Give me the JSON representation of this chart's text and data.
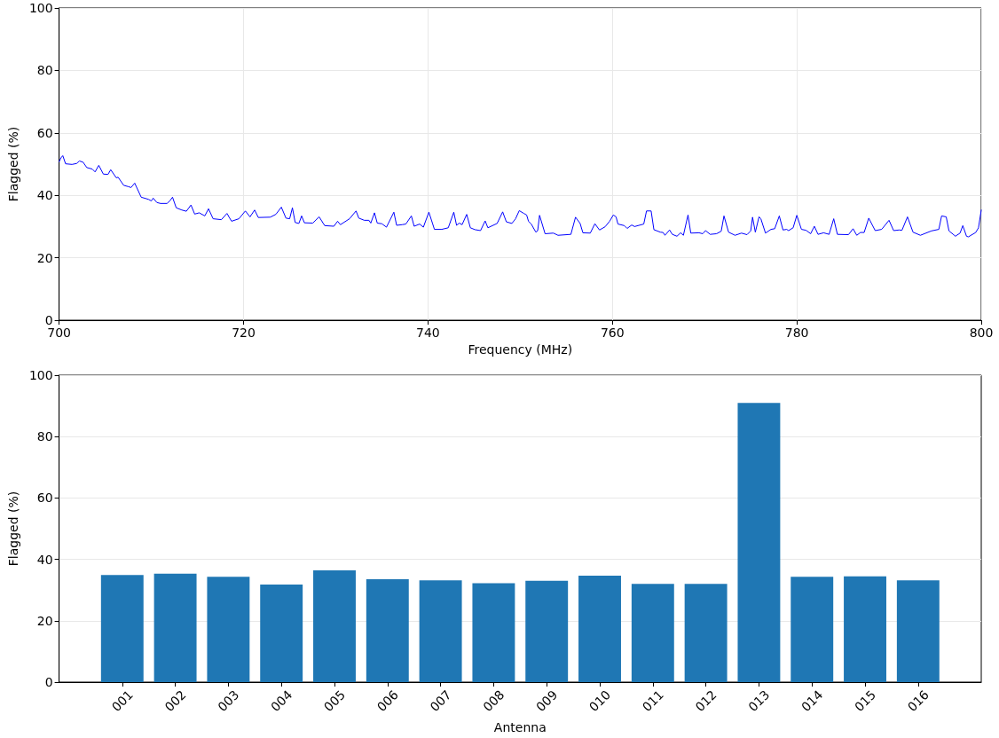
{
  "chart_data": [
    {
      "type": "line",
      "xlabel": "Frequency (MHz)",
      "ylabel": "Flagged (%)",
      "xlim": [
        700,
        800
      ],
      "xticks": [
        700,
        720,
        740,
        760,
        780,
        800
      ],
      "ylim": [
        0,
        100
      ],
      "yticks": [
        0,
        20,
        40,
        60,
        80,
        100
      ],
      "grid": true,
      "x": [
        700.0,
        700.2,
        700.4,
        700.7,
        701.4,
        701.9,
        702.2,
        702.6,
        703.0,
        703.6,
        703.9,
        704.3,
        704.8,
        705.3,
        705.6,
        706.2,
        706.4,
        707.0,
        707.5,
        707.8,
        708.2,
        708.9,
        709.7,
        710.0,
        710.2,
        710.6,
        711.0,
        711.7,
        712.0,
        712.3,
        712.7,
        713.3,
        713.8,
        714.3,
        714.7,
        715.2,
        715.8,
        716.2,
        716.7,
        717.6,
        718.2,
        718.7,
        719.5,
        720.2,
        720.7,
        721.2,
        721.6,
        722.9,
        723.5,
        724.1,
        724.6,
        725.0,
        725.3,
        725.6,
        726.0,
        726.3,
        726.6,
        727.5,
        728.2,
        728.8,
        729.8,
        730.2,
        730.5,
        731.5,
        732.2,
        732.5,
        733.1,
        733.6,
        733.8,
        734.2,
        734.5,
        735.0,
        735.5,
        736.3,
        736.6,
        737.2,
        737.6,
        738.2,
        738.5,
        739.1,
        739.5,
        740.1,
        740.7,
        741.5,
        742.2,
        742.8,
        743.1,
        743.4,
        743.7,
        744.2,
        744.6,
        745.1,
        745.7,
        746.2,
        746.5,
        747.5,
        748.1,
        748.5,
        749.1,
        749.5,
        749.9,
        750.4,
        750.7,
        750.9,
        751.2,
        751.7,
        751.9,
        752.1,
        752.7,
        753.6,
        754.1,
        755.5,
        756.0,
        756.5,
        756.8,
        757.6,
        758.1,
        758.6,
        759.2,
        759.7,
        760.1,
        760.4,
        760.6,
        761.3,
        761.6,
        762.1,
        762.4,
        763.4,
        763.7,
        764.2,
        764.5,
        765.2,
        765.5,
        765.7,
        766.2,
        766.5,
        767.0,
        767.4,
        767.7,
        768.2,
        768.5,
        769.4,
        769.8,
        770.1,
        770.6,
        771.3,
        771.8,
        772.1,
        772.6,
        773.3,
        774.0,
        774.6,
        775.0,
        775.2,
        775.5,
        775.9,
        776.1,
        776.6,
        777.2,
        777.6,
        778.1,
        778.5,
        778.9,
        779.1,
        779.6,
        780.0,
        780.5,
        781.0,
        781.5,
        781.9,
        782.3,
        782.9,
        783.5,
        784.0,
        784.4,
        785.6,
        786.1,
        786.5,
        786.9,
        787.3,
        787.8,
        788.5,
        789.2,
        790.0,
        790.5,
        791.1,
        791.4,
        792.0,
        792.6,
        793.4,
        794.6,
        795.4,
        795.7,
        796.2,
        796.5,
        797.2,
        797.7,
        798.0,
        798.4,
        798.6,
        799.4,
        799.7,
        800.0
      ],
      "series": [
        {
          "color": "#0000ff",
          "values": [
            50.8,
            52.0,
            52.7,
            50.1,
            49.9,
            50.2,
            51.0,
            50.6,
            48.9,
            48.4,
            47.5,
            49.6,
            46.8,
            46.7,
            48.2,
            45.6,
            45.8,
            43.2,
            42.8,
            42.5,
            43.9,
            39.4,
            38.7,
            38.2,
            39.1,
            37.7,
            37.4,
            37.4,
            38.2,
            39.4,
            36.0,
            35.3,
            34.9,
            36.9,
            34.0,
            34.4,
            33.4,
            35.7,
            32.5,
            32.2,
            34.2,
            31.7,
            32.5,
            35.0,
            33.1,
            35.3,
            32.9,
            33.0,
            33.9,
            36.2,
            32.7,
            32.5,
            36.0,
            31.3,
            31.0,
            33.4,
            31.2,
            31.1,
            33.1,
            30.3,
            30.1,
            31.7,
            30.6,
            32.5,
            35.0,
            32.7,
            32.0,
            32.0,
            31.1,
            34.4,
            31.1,
            30.9,
            29.8,
            34.6,
            30.4,
            30.6,
            30.8,
            33.4,
            30.1,
            30.8,
            29.8,
            34.6,
            29.1,
            29.1,
            29.6,
            34.6,
            30.4,
            31.1,
            30.6,
            33.9,
            29.6,
            29.0,
            28.7,
            31.8,
            29.6,
            31.0,
            34.7,
            31.5,
            31.0,
            32.5,
            35.1,
            34.2,
            33.7,
            31.7,
            30.8,
            28.2,
            28.7,
            33.6,
            27.7,
            27.9,
            27.2,
            27.5,
            33.0,
            31.0,
            28.0,
            27.9,
            30.9,
            28.9,
            29.9,
            31.7,
            33.7,
            33.1,
            30.8,
            30.3,
            29.4,
            30.5,
            30.0,
            30.8,
            35.0,
            35.0,
            29.0,
            28.2,
            28.1,
            27.2,
            28.9,
            27.5,
            26.9,
            28.0,
            27.2,
            33.7,
            27.9,
            28.0,
            27.7,
            28.7,
            27.5,
            27.7,
            28.5,
            33.4,
            28.2,
            27.2,
            27.9,
            27.4,
            28.6,
            33.0,
            28.2,
            33.1,
            32.5,
            27.9,
            29.1,
            29.3,
            33.4,
            28.9,
            29.1,
            28.7,
            29.6,
            33.6,
            29.1,
            28.8,
            27.7,
            30.1,
            27.5,
            28.0,
            27.5,
            32.5,
            27.5,
            27.4,
            29.3,
            27.2,
            28.1,
            28.1,
            32.7,
            28.7,
            29.1,
            32.0,
            28.7,
            28.9,
            28.8,
            33.1,
            28.2,
            27.2,
            28.6,
            29.1,
            33.4,
            33.1,
            28.6,
            26.9,
            27.9,
            30.3,
            26.9,
            26.7,
            28.1,
            29.6,
            35.3
          ]
        }
      ]
    },
    {
      "type": "bar",
      "xlabel": "Antenna",
      "ylabel": "Flagged (%)",
      "ylim": [
        0,
        100
      ],
      "yticks": [
        0,
        20,
        40,
        60,
        80,
        100
      ],
      "grid": "y",
      "categories": [
        "001",
        "002",
        "003",
        "004",
        "005",
        "006",
        "007",
        "008",
        "009",
        "010",
        "011",
        "012",
        "013",
        "014",
        "015",
        "016"
      ],
      "series": [
        {
          "color": "#1f77b4",
          "values": [
            34.9,
            35.3,
            34.3,
            31.8,
            36.4,
            33.5,
            33.2,
            32.2,
            33.0,
            34.7,
            32.0,
            32.0,
            91.0,
            34.3,
            34.5,
            33.2
          ]
        }
      ]
    }
  ]
}
